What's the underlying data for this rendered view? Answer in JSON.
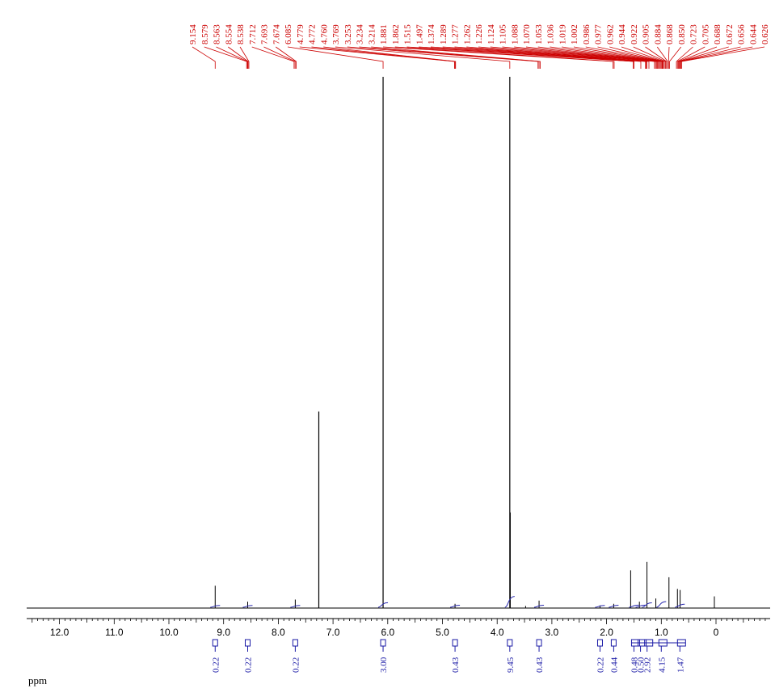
{
  "chart_data": {
    "type": "line",
    "title": "",
    "xlabel": "ppm",
    "ylabel": "",
    "x_reversed": true,
    "xlim": [
      12.8,
      -0.95
    ],
    "x_ticks": [
      "12.0",
      "11.0",
      "10.0",
      "9.0",
      "8.0",
      "7.0",
      "6.0",
      "5.0",
      "4.0",
      "3.0",
      "2.0",
      "1.0",
      "0"
    ],
    "x_tick_values": [
      12.0,
      11.0,
      10.0,
      9.0,
      8.0,
      7.0,
      6.0,
      5.0,
      4.0,
      3.0,
      2.0,
      1.0,
      0.0
    ],
    "grid": false,
    "peak_labels": [
      "9.154",
      "8.579",
      "8.563",
      "8.554",
      "8.538",
      "7.712",
      "7.693",
      "7.674",
      "6.085",
      "4.779",
      "4.772",
      "4.760",
      "3.769",
      "3.253",
      "3.234",
      "3.214",
      "1.881",
      "1.862",
      "1.515",
      "1.497",
      "1.374",
      "1.289",
      "1.277",
      "1.262",
      "1.226",
      "1.124",
      "1.105",
      "1.088",
      "1.070",
      "1.053",
      "1.036",
      "1.019",
      "1.002",
      "0.986",
      "0.977",
      "0.962",
      "0.944",
      "0.922",
      "0.905",
      "0.884",
      "0.868",
      "0.850",
      "0.723",
      "0.705",
      "0.688",
      "0.672",
      "0.656",
      "0.644",
      "0.626"
    ],
    "peak_positions": [
      9.154,
      8.579,
      8.563,
      8.554,
      8.538,
      7.712,
      7.693,
      7.674,
      6.085,
      4.779,
      4.772,
      4.76,
      3.769,
      3.253,
      3.234,
      3.214,
      1.881,
      1.862,
      1.515,
      1.497,
      1.374,
      1.289,
      1.277,
      1.262,
      1.226,
      1.124,
      1.105,
      1.088,
      1.07,
      1.053,
      1.036,
      1.019,
      1.002,
      0.986,
      0.977,
      0.962,
      0.944,
      0.922,
      0.905,
      0.884,
      0.868,
      0.85,
      0.723,
      0.705,
      0.688,
      0.672,
      0.656,
      0.644,
      0.626
    ],
    "peaks": [
      {
        "ppm": 9.154,
        "height": 0.042
      },
      {
        "ppm": 8.56,
        "height": 0.012
      },
      {
        "ppm": 7.69,
        "height": 0.016
      },
      {
        "ppm": 7.26,
        "height": 0.37
      },
      {
        "ppm": 6.085,
        "height": 1.0
      },
      {
        "ppm": 4.77,
        "height": 0.008
      },
      {
        "ppm": 3.769,
        "height": 1.0
      },
      {
        "ppm": 3.76,
        "height": 0.18
      },
      {
        "ppm": 3.48,
        "height": 0.004
      },
      {
        "ppm": 3.234,
        "height": 0.014
      },
      {
        "ppm": 2.12,
        "height": 0.005
      },
      {
        "ppm": 1.87,
        "height": 0.008
      },
      {
        "ppm": 1.56,
        "height": 0.071
      },
      {
        "ppm": 1.4,
        "height": 0.012
      },
      {
        "ppm": 1.262,
        "height": 0.087
      },
      {
        "ppm": 1.1,
        "height": 0.018
      },
      {
        "ppm": 0.86,
        "height": 0.058
      },
      {
        "ppm": 0.705,
        "height": 0.036
      },
      {
        "ppm": 0.656,
        "height": 0.034
      },
      {
        "ppm": 0.03,
        "height": 0.022
      }
    ],
    "integrals": [
      {
        "ppm": 9.154,
        "label": "0.22"
      },
      {
        "ppm": 8.56,
        "label": "0.22"
      },
      {
        "ppm": 7.69,
        "label": "0.22"
      },
      {
        "ppm": 6.085,
        "label": "3.00"
      },
      {
        "ppm": 4.77,
        "label": "0.43"
      },
      {
        "ppm": 3.769,
        "label": "9.45"
      },
      {
        "ppm": 3.234,
        "label": "0.43"
      },
      {
        "ppm": 2.12,
        "label": "0.22"
      },
      {
        "ppm": 1.87,
        "label": "0.44"
      },
      {
        "ppm": 1.5,
        "label": "0.48"
      },
      {
        "ppm": 1.38,
        "label": "0.50"
      },
      {
        "ppm": 1.26,
        "label": "2.92"
      },
      {
        "ppm": 1.0,
        "label": "4.15"
      },
      {
        "ppm": 0.66,
        "label": "1.47"
      }
    ]
  },
  "colors": {
    "spectrum": "#000000",
    "peak_labels": "#cc0000",
    "integrals": "#1a1aa6",
    "integral_curve": "#2b2bb0"
  }
}
